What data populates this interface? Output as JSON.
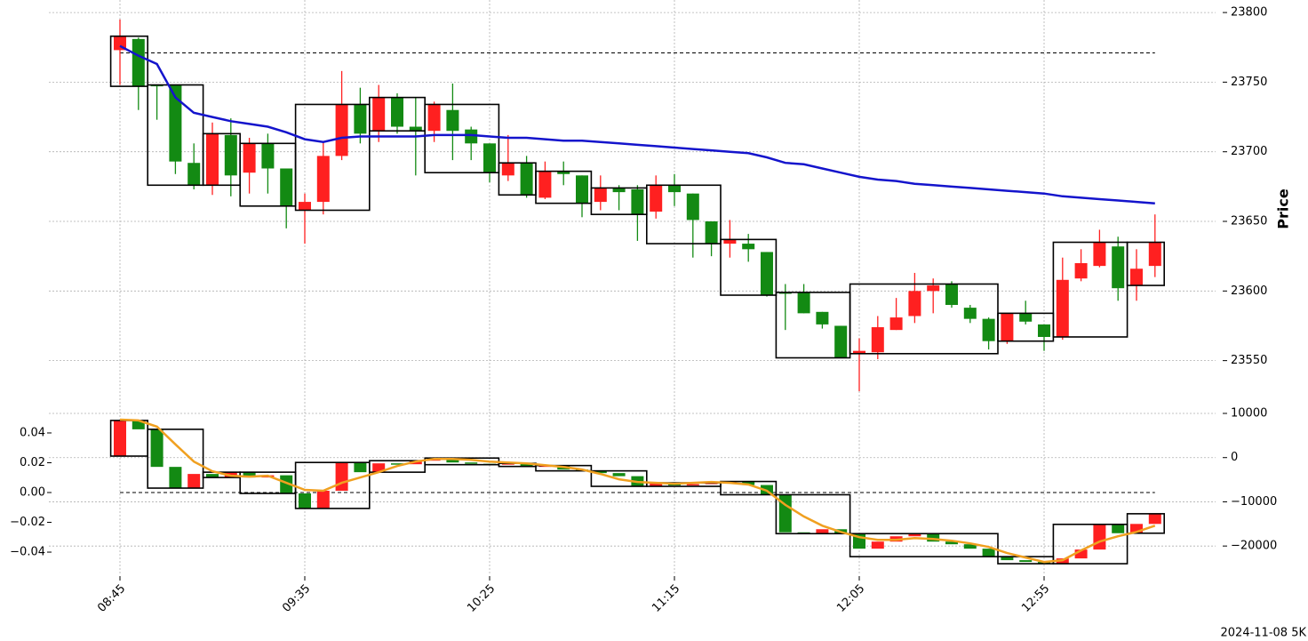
{
  "chart_data": [
    {
      "type": "candlestick",
      "ylabel": "Price",
      "open": [
        23773,
        23781,
        23748,
        23748,
        23692,
        23676,
        23712,
        23685,
        23706,
        23688,
        23658,
        23664,
        23697,
        23734,
        23715,
        23739,
        23718,
        23715,
        23730,
        23716,
        23706,
        23683,
        23692,
        23667,
        23686,
        23683,
        23664,
        23674,
        23673,
        23657,
        23676,
        23670,
        23650,
        23634,
        23634,
        23628,
        23599,
        23599,
        23585,
        23575,
        23555,
        23556,
        23572,
        23582,
        23600,
        23605,
        23588,
        23580,
        23564,
        23584,
        23576,
        23567,
        23609,
        23618,
        23632,
        23604,
        23618
      ],
      "high": [
        23795,
        23782,
        23748,
        23748,
        23706,
        23721,
        23724,
        23710,
        23713,
        23688,
        23670,
        23707,
        23758,
        23746,
        23748,
        23742,
        23739,
        23736,
        23749,
        23718,
        23706,
        23712,
        23697,
        23693,
        23693,
        23683,
        23683,
        23676,
        23676,
        23683,
        23684,
        23670,
        23650,
        23651,
        23641,
        23628,
        23605,
        23605,
        23585,
        23575,
        23566,
        23582,
        23595,
        23613,
        23609,
        23607,
        23590,
        23581,
        23584,
        23593,
        23576,
        23624,
        23630,
        23644,
        23639,
        23630,
        23655
      ],
      "low": [
        23748,
        23730,
        23723,
        23684,
        23673,
        23669,
        23668,
        23670,
        23670,
        23645,
        23634,
        23655,
        23694,
        23706,
        23707,
        23713,
        23683,
        23707,
        23694,
        23694,
        23678,
        23679,
        23667,
        23666,
        23676,
        23653,
        23658,
        23658,
        23636,
        23652,
        23661,
        23624,
        23625,
        23624,
        23621,
        23596,
        23572,
        23584,
        23573,
        23552,
        23528,
        23551,
        23572,
        23577,
        23584,
        23588,
        23577,
        23558,
        23562,
        23576,
        23557,
        23565,
        23607,
        23617,
        23593,
        23593,
        23610
      ],
      "close": [
        23783,
        23747,
        23747,
        23693,
        23676,
        23713,
        23683,
        23706,
        23688,
        23661,
        23664,
        23697,
        23734,
        23713,
        23739,
        23718,
        23715,
        23734,
        23715,
        23706,
        23685,
        23692,
        23669,
        23686,
        23684,
        23663,
        23674,
        23671,
        23655,
        23676,
        23671,
        23651,
        23634,
        23637,
        23630,
        23597,
        23598,
        23584,
        23576,
        23552,
        23557,
        23574,
        23581,
        23600,
        23604,
        23590,
        23580,
        23564,
        23584,
        23578,
        23567,
        23608,
        23620,
        23635,
        23602,
        23616,
        23635
      ],
      "up_color": "#ff2020",
      "down_color": "#138a13",
      "line": {
        "color": "#1414cc",
        "values": [
          23776,
          23769,
          23763,
          23739,
          23728,
          23725,
          23722,
          23720,
          23718,
          23714,
          23709,
          23707,
          23710,
          23711,
          23711,
          23711,
          23711,
          23712,
          23712,
          23712,
          23711,
          23710,
          23710,
          23709,
          23708,
          23708,
          23707,
          23706,
          23705,
          23704,
          23703,
          23702,
          23701,
          23700,
          23699,
          23696,
          23692,
          23691,
          23688,
          23685,
          23682,
          23680,
          23679,
          23677,
          23676,
          23675,
          23674,
          23673,
          23672,
          23671,
          23670,
          23668,
          23667,
          23666,
          23665,
          23664,
          23663
        ]
      },
      "hline": 23771,
      "box_groups": [
        [
          0,
          1
        ],
        [
          2,
          4
        ],
        [
          5,
          6
        ],
        [
          7,
          9
        ],
        [
          10,
          13
        ],
        [
          14,
          16
        ],
        [
          17,
          20
        ],
        [
          21,
          22
        ],
        [
          23,
          25
        ],
        [
          26,
          28
        ],
        [
          29,
          32
        ],
        [
          33,
          35
        ],
        [
          36,
          39
        ],
        [
          40,
          47
        ],
        [
          48,
          50
        ],
        [
          51,
          54
        ],
        [
          55,
          56
        ]
      ],
      "ylim": [
        23514,
        23809
      ],
      "yticks": [
        23550,
        23600,
        23650,
        23700,
        23750,
        23800
      ],
      "grid": true
    },
    {
      "type": "candlestick",
      "x": [
        "08:45",
        null,
        null,
        null,
        null,
        null,
        null,
        null,
        null,
        null,
        "09:35",
        null,
        null,
        null,
        null,
        null,
        null,
        null,
        null,
        null,
        "10:25",
        null,
        null,
        null,
        null,
        null,
        null,
        null,
        null,
        null,
        "11:15",
        null,
        null,
        null,
        null,
        null,
        null,
        null,
        null,
        null,
        "12:05",
        null,
        null,
        null,
        null,
        null,
        null,
        null,
        null,
        null,
        "12:55",
        null,
        null,
        null,
        null,
        null,
        null
      ],
      "open": [
        340,
        8400,
        6400,
        -2100,
        -6900,
        -3700,
        -4500,
        -3300,
        -4500,
        -4000,
        -8100,
        -11500,
        -7500,
        -1100,
        -3300,
        -1300,
        -1500,
        -700,
        -100,
        -1100,
        -1400,
        -1600,
        -1300,
        -2000,
        -1800,
        -2700,
        -3000,
        -3500,
        -4200,
        -6500,
        -5800,
        -6300,
        -6000,
        -5700,
        -5400,
        -6200,
        -8400,
        -16900,
        -17200,
        -16200,
        -17200,
        -20600,
        -19000,
        -17800,
        -17200,
        -19000,
        -19600,
        -20600,
        -22400,
        -23200,
        -23600,
        -24000,
        -22800,
        -20800,
        -15100,
        -17100,
        -15000
      ],
      "close": [
        8400,
        6400,
        -2100,
        -6900,
        -3700,
        -4500,
        -3300,
        -4500,
        -4000,
        -8100,
        -11500,
        -7500,
        -1100,
        -3300,
        -1300,
        -1500,
        -700,
        -100,
        -1100,
        -1400,
        -1600,
        -1300,
        -2000,
        -1800,
        -2700,
        -3000,
        -3500,
        -4200,
        -6500,
        -5800,
        -6300,
        -6000,
        -5700,
        -5400,
        -6200,
        -8400,
        -16900,
        -17200,
        -16200,
        -17200,
        -20600,
        -19000,
        -17800,
        -17200,
        -19000,
        -19600,
        -20600,
        -22400,
        -23200,
        -23600,
        -24000,
        -22800,
        -20800,
        -15100,
        -17100,
        -15000,
        -12700
      ],
      "line": {
        "color": "#f0a020",
        "values": [
          8600,
          8400,
          7000,
          3000,
          -900,
          -3100,
          -4100,
          -4300,
          -4100,
          -5700,
          -7300,
          -7500,
          -5700,
          -4500,
          -3300,
          -1900,
          -900,
          -300,
          -300,
          -500,
          -900,
          -1100,
          -1300,
          -1700,
          -2100,
          -2700,
          -3700,
          -4900,
          -5500,
          -5700,
          -5900,
          -5700,
          -5500,
          -5700,
          -6100,
          -7500,
          -10700,
          -13300,
          -15400,
          -16800,
          -18000,
          -18600,
          -18600,
          -18200,
          -18400,
          -18800,
          -19400,
          -20200,
          -21600,
          -22600,
          -23600,
          -23200,
          -21000,
          -19000,
          -17800,
          -16800,
          -15400
        ]
      },
      "hline": 0,
      "ylim": [
        -26200,
        10400
      ],
      "yticks": [
        10000,
        0,
        {
          "value": -10000,
          "label": "−10000"
        },
        {
          "value": -20000,
          "label": "−20000"
        }
      ],
      "y2lim": [
        -0.0543,
        0.0543
      ],
      "y2ticks": [
        0.04,
        0.02,
        {
          "value": 0,
          "label": "0.00"
        },
        {
          "value": -0.02,
          "label": "−0.02"
        },
        {
          "value": -0.04,
          "label": "−0.04"
        }
      ],
      "grid": true
    }
  ],
  "footnote": "2024-11-08 5K"
}
